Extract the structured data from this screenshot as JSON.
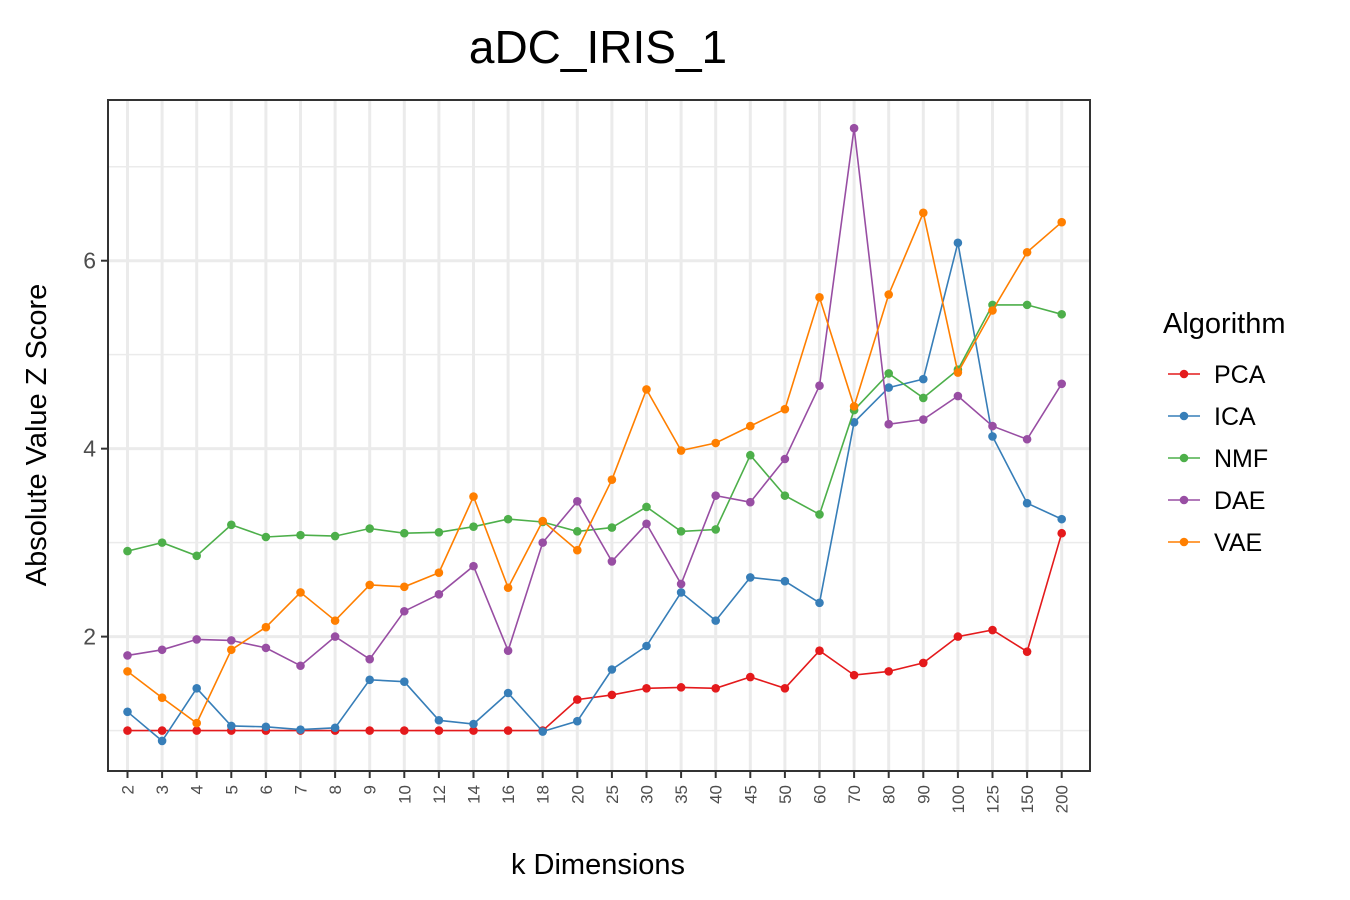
{
  "chart_data": {
    "type": "line",
    "title": "aDC_IRIS_1",
    "xlabel": "k Dimensions",
    "ylabel": "Absolute Value Z Score",
    "categories": [
      "2",
      "3",
      "4",
      "5",
      "6",
      "7",
      "8",
      "9",
      "10",
      "12",
      "14",
      "16",
      "18",
      "20",
      "25",
      "30",
      "35",
      "40",
      "45",
      "50",
      "60",
      "70",
      "80",
      "90",
      "100",
      "125",
      "150",
      "200"
    ],
    "ylim": [
      0.57,
      7.71
    ],
    "yticks": [
      2,
      4,
      6
    ],
    "grid": true,
    "legend": {
      "title": "Algorithm",
      "position": "right"
    },
    "series": [
      {
        "name": "PCA",
        "color": "#E41A1C",
        "values": [
          1.0,
          1.0,
          1.0,
          1.0,
          1.0,
          1.0,
          1.0,
          1.0,
          1.0,
          1.0,
          1.0,
          1.0,
          1.0,
          1.33,
          1.38,
          1.45,
          1.46,
          1.45,
          1.57,
          1.45,
          1.85,
          1.59,
          1.63,
          1.72,
          2.0,
          2.07,
          1.84,
          3.1
        ]
      },
      {
        "name": "ICA",
        "color": "#377EB8",
        "values": [
          1.2,
          0.89,
          1.45,
          1.05,
          1.04,
          1.01,
          1.03,
          1.54,
          1.52,
          1.11,
          1.07,
          1.4,
          0.99,
          1.1,
          1.65,
          1.9,
          2.47,
          2.17,
          2.63,
          2.59,
          2.36,
          4.28,
          4.65,
          4.74,
          6.19,
          4.13,
          3.42,
          3.25
        ]
      },
      {
        "name": "NMF",
        "color": "#4DAF4A",
        "values": [
          2.91,
          3.0,
          2.86,
          3.19,
          3.06,
          3.08,
          3.07,
          3.15,
          3.1,
          3.11,
          3.17,
          3.25,
          3.22,
          3.12,
          3.16,
          3.38,
          3.12,
          3.14,
          3.93,
          3.5,
          3.3,
          4.41,
          4.8,
          4.54,
          4.84,
          5.53,
          5.53,
          5.43
        ]
      },
      {
        "name": "DAE",
        "color": "#984EA3",
        "values": [
          1.8,
          1.86,
          1.97,
          1.96,
          1.88,
          1.69,
          2.0,
          1.76,
          2.27,
          2.45,
          2.75,
          1.85,
          3.0,
          3.44,
          2.8,
          3.2,
          2.56,
          3.5,
          3.43,
          3.89,
          4.67,
          7.41,
          4.26,
          4.31,
          4.56,
          4.24,
          4.1,
          4.69
        ]
      },
      {
        "name": "VAE",
        "color": "#FF7F00",
        "values": [
          1.63,
          1.35,
          1.08,
          1.86,
          2.1,
          2.47,
          2.17,
          2.55,
          2.53,
          2.68,
          3.49,
          2.52,
          3.23,
          2.92,
          3.67,
          4.63,
          3.98,
          4.06,
          4.24,
          4.42,
          5.61,
          4.45,
          5.64,
          6.51,
          4.81,
          5.47,
          6.09,
          6.41
        ]
      }
    ]
  }
}
